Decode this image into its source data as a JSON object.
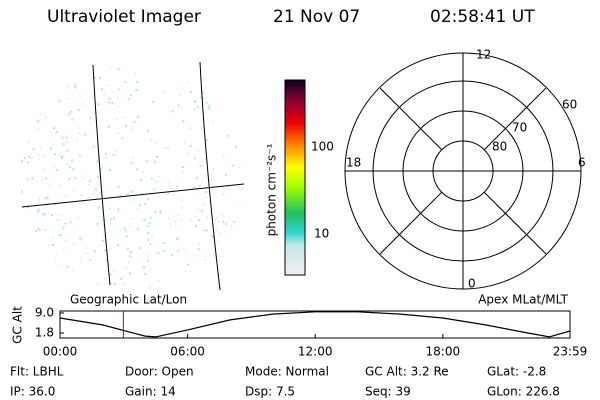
{
  "header": {
    "title": "Ultraviolet Imager",
    "date": "21 Nov 07",
    "time": "02:58:41 UT"
  },
  "image_panel": {
    "label": "Geographic Lat/Lon"
  },
  "colorbar": {
    "label": "photon cm⁻²s⁻¹",
    "ticks": [
      "100",
      "10"
    ]
  },
  "polar_panel": {
    "label": "Apex MLat/MLT",
    "mlt_labels": [
      "12",
      "18",
      "6",
      "0"
    ],
    "mlat_labels": [
      "60",
      "70",
      "80"
    ]
  },
  "chart_data": {
    "type": "line",
    "ylabel": "GC Alt",
    "x": [
      0,
      2,
      4,
      4.5,
      6,
      8,
      10,
      12,
      14,
      16,
      18,
      20,
      22,
      23,
      23.98
    ],
    "values": [
      7.2,
      4.7,
      0.7,
      0.4,
      2.9,
      6.5,
      8.6,
      9.4,
      9.4,
      8.6,
      7.2,
      4.7,
      1.8,
      0.4,
      2.5
    ],
    "color": "#000000",
    "marker_x": 2.98,
    "marker_color": "#cc0000",
    "xlim": [
      0,
      23.98
    ],
    "xticks": [
      {
        "value": 0,
        "label": "00:00"
      },
      {
        "value": 6,
        "label": "06:00"
      },
      {
        "value": 12,
        "label": "12:00"
      },
      {
        "value": 18,
        "label": "18:00"
      },
      {
        "value": 23.98,
        "label": "23:59"
      }
    ],
    "ylim": [
      0,
      9.7
    ],
    "yticks": [
      {
        "value": 9,
        "label": "9.0"
      },
      {
        "value": 1.8,
        "label": "1.8"
      }
    ]
  },
  "info": [
    [
      "Flt: LBHL",
      "Door: Open",
      "Mode: Normal",
      "GC Alt: 3.2 Re",
      "GLat:  -2.8"
    ],
    [
      "IP: 36.0",
      "Gain: 14",
      "Dsp:    7.5",
      "Seq: 39",
      "GLon: 226.8"
    ]
  ]
}
